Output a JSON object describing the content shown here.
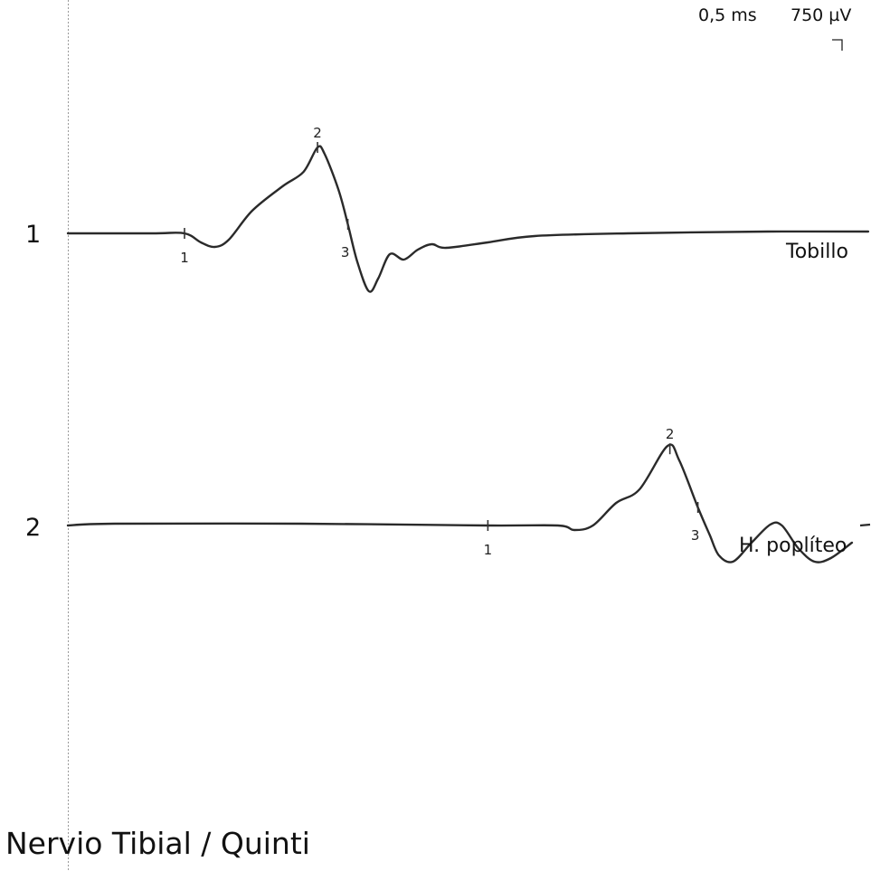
{
  "scale": {
    "time": "0,5 ms",
    "amplitude": "750 µV"
  },
  "title": "Nervio Tibial / Quinti",
  "chart_data": {
    "type": "line",
    "title": "Nervio Tibial / Quinti",
    "xlabel": "",
    "ylabel": "",
    "grid": false,
    "time_per_division_ms": 0.5,
    "amplitude_per_division_uV": 750,
    "series": [
      {
        "name": "Tobillo",
        "trace_number": "1",
        "marker_labels": [
          "1",
          "2",
          "3"
        ],
        "values": [
          [
            0,
            0
          ],
          [
            0.36,
            0
          ],
          [
            0.5,
            0
          ],
          [
            0.57,
            -0.1
          ],
          [
            0.63,
            -0.15
          ],
          [
            0.69,
            -0.07
          ],
          [
            0.79,
            0.25
          ],
          [
            0.92,
            0.52
          ],
          [
            1.01,
            0.68
          ],
          [
            1.07,
            0.95
          ],
          [
            1.1,
            0.88
          ],
          [
            1.16,
            0.48
          ],
          [
            1.2,
            0.1
          ],
          [
            1.24,
            -0.31
          ],
          [
            1.29,
            -0.64
          ],
          [
            1.33,
            -0.5
          ],
          [
            1.38,
            -0.23
          ],
          [
            1.44,
            -0.29
          ],
          [
            1.5,
            -0.18
          ],
          [
            1.56,
            -0.12
          ],
          [
            1.62,
            -0.16
          ],
          [
            1.8,
            -0.1
          ],
          [
            2.0,
            -0.03
          ],
          [
            2.4,
            0
          ],
          [
            3.0,
            0.02
          ],
          [
            3.43,
            0.02
          ]
        ],
        "markers": [
          {
            "label": "1",
            "x": 0.5
          },
          {
            "label": "2",
            "x": 1.07
          },
          {
            "label": "3",
            "x": 1.2
          }
        ]
      },
      {
        "name": "H. poplíteo",
        "trace_number": "2",
        "marker_labels": [
          "1",
          "2",
          "3"
        ],
        "values": [
          [
            0,
            0
          ],
          [
            0.2,
            0.02
          ],
          [
            1.0,
            0.02
          ],
          [
            1.8,
            0
          ],
          [
            2.1,
            0
          ],
          [
            2.17,
            -0.05
          ],
          [
            2.25,
            0
          ],
          [
            2.35,
            0.25
          ],
          [
            2.45,
            0.4
          ],
          [
            2.57,
            0.88
          ],
          [
            2.62,
            0.72
          ],
          [
            2.7,
            0.2
          ],
          [
            2.75,
            -0.1
          ],
          [
            2.79,
            -0.33
          ],
          [
            2.85,
            -0.4
          ],
          [
            2.93,
            -0.19
          ],
          [
            3.01,
            0.01
          ],
          [
            3.06,
            0
          ],
          [
            3.13,
            -0.25
          ],
          [
            3.2,
            -0.4
          ],
          [
            3.27,
            -0.36
          ],
          [
            3.36,
            -0.19
          ]
        ],
        "markers": [
          {
            "label": "1",
            "x": 1.8
          },
          {
            "label": "2",
            "x": 2.58
          },
          {
            "label": "3",
            "x": 2.7
          }
        ]
      }
    ]
  }
}
